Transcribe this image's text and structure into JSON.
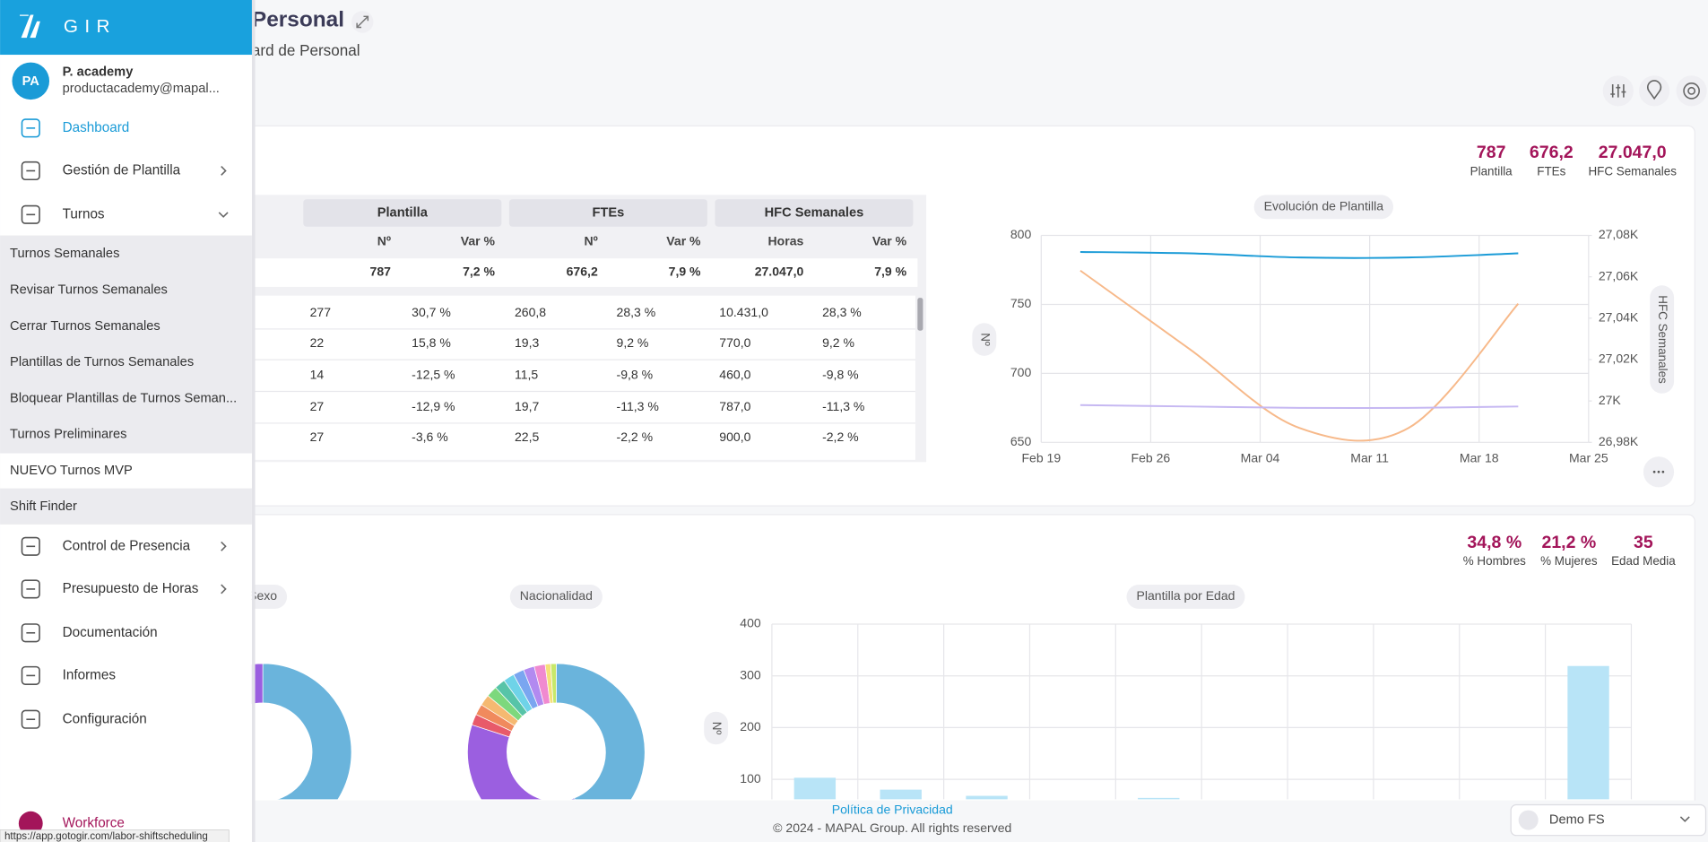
{
  "sidebar": {
    "brand": "GIR",
    "user": {
      "initials": "PA",
      "name": "P. academy",
      "email": "productacademy@mapal..."
    },
    "menu_top": [
      "Dashboard",
      "Gestión de Plantilla",
      "Turnos"
    ],
    "submenu": [
      "Turnos Semanales",
      "Revisar Turnos Semanales",
      "Cerrar Turnos Semanales",
      "Plantillas de Turnos Semanales",
      "Bloquear Plantillas de Turnos Seman...",
      "Turnos Preliminares",
      "NUEVO Turnos MVP",
      "Shift Finder"
    ],
    "menu_bottom": [
      "Control de Presencia",
      "Presupuesto de Horas",
      "Documentación",
      "Informes",
      "Configuración"
    ],
    "footer_app": "Workforce"
  },
  "status_url": "https://app.gotogir.com/labor-shiftscheduling",
  "header": {
    "title": "Personal",
    "subtitle": "ard de Personal"
  },
  "summary": {
    "kpis": [
      {
        "value": "787",
        "label": "Plantilla"
      },
      {
        "value": "676,2",
        "label": "FTEs"
      },
      {
        "value": "27.047,0",
        "label": "HFC Semanales"
      }
    ]
  },
  "table": {
    "groups": [
      "Plantilla",
      "FTEs",
      "HFC Semanales"
    ],
    "columns": [
      "Nº",
      "Var %",
      "Nº",
      "Var %",
      "Horas",
      "Var %"
    ],
    "total": [
      "787",
      "7,2 %",
      "676,2",
      "7,9 %",
      "27.047,0",
      "7,9 %"
    ],
    "rows": [
      [
        "277",
        "30,7 %",
        "260,8",
        "28,3 %",
        "10.431,0",
        "28,3 %"
      ],
      [
        "22",
        "15,8 %",
        "19,3",
        "9,2 %",
        "770,0",
        "9,2 %"
      ],
      [
        "14",
        "-12,5 %",
        "11,5",
        "-9,8 %",
        "460,0",
        "-9,8 %"
      ],
      [
        "27",
        "-12,9 %",
        "19,7",
        "-11,3 %",
        "787,0",
        "-11,3 %"
      ],
      [
        "27",
        "-3,6 %",
        "22,5",
        "-2,2 %",
        "900,0",
        "-2,2 %"
      ]
    ]
  },
  "chart_data": [
    {
      "type": "line",
      "title": "Evolución de Plantilla",
      "y_label": "Nº",
      "y2_label": "HFC Semanales",
      "x": [
        2.5,
        9.5,
        16.5,
        23.5,
        30.5
      ],
      "xlim": [
        0,
        35
      ],
      "xticks": [
        {
          "value": 0,
          "label": "Feb 19"
        },
        {
          "value": 7,
          "label": "Feb 26"
        },
        {
          "value": 14,
          "label": "Mar 04"
        },
        {
          "value": 21,
          "label": "Mar 11"
        },
        {
          "value": 28,
          "label": "Mar 18"
        },
        {
          "value": 35,
          "label": "Mar 25"
        }
      ],
      "ylim": [
        650,
        800
      ],
      "yticks": [
        650,
        700,
        750,
        800
      ],
      "y2lim": [
        26980,
        27080
      ],
      "y2ticks": [
        {
          "value": 26980,
          "label": "26,98K"
        },
        {
          "value": 27000,
          "label": "27K"
        },
        {
          "value": 27020,
          "label": "27,02K"
        },
        {
          "value": 27040,
          "label": "27,04K"
        },
        {
          "value": 27060,
          "label": "27,06K"
        },
        {
          "value": 27080,
          "label": "27,08K"
        }
      ],
      "grid": true,
      "series": [
        {
          "color": "#1a9bd7",
          "values": [
            788,
            787,
            784,
            784,
            787
          ]
        },
        {
          "color": "#f7b98a",
          "axis": "y2",
          "values": [
            27063,
            27025,
            26987,
            26987,
            27047
          ]
        },
        {
          "color": "#c6b8f2",
          "values": [
            677,
            676,
            675,
            675,
            676
          ]
        }
      ]
    },
    {
      "type": "pie",
      "title": "Sexo",
      "values": [
        65,
        35
      ],
      "colors": [
        "#6ab4dc",
        "#9b5fe0"
      ]
    },
    {
      "type": "pie",
      "title": "Nacionalidad",
      "values": [
        44,
        1,
        35,
        2,
        2,
        2,
        2,
        2,
        2,
        2,
        2,
        2,
        1,
        1
      ],
      "colors": [
        "#6ab4dc",
        "#7b6fe0",
        "#9b5fe0",
        "#e85a6a",
        "#f08a5d",
        "#f5b971",
        "#7dd87d",
        "#57c4a8",
        "#6fd3e8",
        "#7aa6f0",
        "#b28af0",
        "#f08ad0",
        "#f5e07a",
        "#c8e86a"
      ]
    },
    {
      "type": "bar",
      "title": "Plantilla por Edad",
      "y_label": "Nº",
      "categories": [
        null,
        null,
        null,
        null,
        null,
        null,
        null,
        null,
        null,
        null
      ],
      "values": [
        103,
        80,
        68,
        null,
        64,
        null,
        null,
        null,
        null,
        319
      ],
      "color": "#b8e4f7",
      "ylim": [
        0,
        400
      ],
      "yticks": [
        100,
        200,
        300,
        400
      ],
      "grid": true
    }
  ],
  "demographics": {
    "kpis": [
      {
        "value": "34,8 %",
        "label": "% Hombres"
      },
      {
        "value": "21,2 %",
        "label": "% Mujeres"
      },
      {
        "value": "35",
        "label": "Edad Media"
      }
    ]
  },
  "footer": {
    "privacy": "Política de Privacidad",
    "copyright": "© 2024 - MAPAL Group. All rights reserved"
  },
  "location_selector": "Demo FS"
}
